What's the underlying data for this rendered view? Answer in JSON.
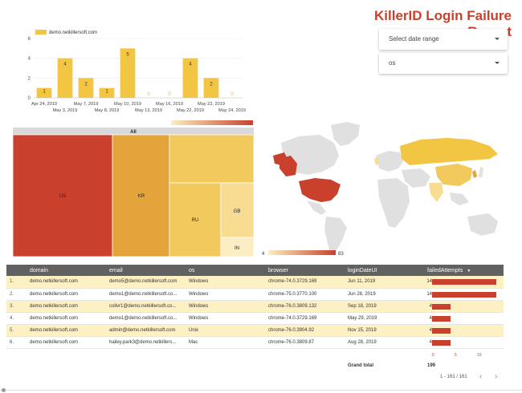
{
  "report": {
    "title": "KillerID Login Failure Report"
  },
  "filters": {
    "date_range": {
      "label": "Select date range"
    },
    "os": {
      "label": "os"
    }
  },
  "bar_chart": {
    "type": "bar",
    "legend": "demo.netkillersoft.com",
    "color": "#f2c542",
    "categories": [
      "Apr 24, 2019",
      "May 3, 2019",
      "May 7, 2019",
      "May 8, 2019",
      "May 10, 2019",
      "May 13, 2019",
      "May 16, 2019",
      "May 22, 2019",
      "May 23, 2019",
      "May 24, 2019"
    ],
    "values": [
      1,
      4,
      2,
      1,
      5,
      0,
      0,
      4,
      2,
      0
    ],
    "yticks": [
      0,
      2,
      4,
      6
    ],
    "ylim": [
      0,
      6
    ]
  },
  "treemap": {
    "header": "All",
    "legend_colors": {
      "low": "#fbeec2",
      "high": "#c9412c"
    },
    "items": [
      {
        "label": "US",
        "color": "#c9412c"
      },
      {
        "label": "KR",
        "color": "#e3a53b"
      },
      {
        "label": "",
        "color": "#f2c95c"
      },
      {
        "label": "RU",
        "color": "#f2c95c"
      },
      {
        "label": "GB",
        "color": "#f7dc92"
      },
      {
        "label": "IN",
        "color": "#fbeec2"
      }
    ]
  },
  "geo_map": {
    "legend_min": "4",
    "legend_max": "83",
    "colors": {
      "base": "#e0e0e0",
      "us": "#c9412c",
      "greenland": "#c9412c",
      "russia": "#f2c542",
      "china": "#f2c95c",
      "light": "#f7dc92"
    }
  },
  "table": {
    "columns": [
      "domain",
      "email",
      "os",
      "browser",
      "loginDateUI",
      "failedAttempts"
    ],
    "sort_indicator": "▼",
    "rows": [
      {
        "idx": "1.",
        "domain": "demo.netkillersoft.com",
        "email": "demo5@demo.netkillersoft.com",
        "os": "Windows",
        "browser": "chrome-74.0.3729.169",
        "date": "Jun 11, 2019",
        "attempts": 14
      },
      {
        "idx": "2.",
        "domain": "demo.netkillersoft.com",
        "email": "demo1@demo.netkillersoft.co...",
        "os": "Windows",
        "browser": "chrome-75.0.3770.100",
        "date": "Jun 28, 2019",
        "attempts": 14
      },
      {
        "idx": "3.",
        "domain": "demo.netkillersoft.com",
        "email": "collvr1@demo.netkillersoft.co...",
        "os": "Windows",
        "browser": "chrome-76.0.3809.132",
        "date": "Sep 18, 2019",
        "attempts": 4
      },
      {
        "idx": "4.",
        "domain": "demo.netkillersoft.com",
        "email": "demo1@demo.netkillersoft.co...",
        "os": "Windows",
        "browser": "chrome-74.0.3729.169",
        "date": "May 29, 2019",
        "attempts": 4
      },
      {
        "idx": "5.",
        "domain": "demo.netkillersoft.com",
        "email": "admin@demo.netkillersoft.com",
        "os": "Unix",
        "browser": "chrome-76.0.3904.92",
        "date": "Nov 15, 2019",
        "attempts": 4
      },
      {
        "idx": "6.",
        "domain": "demo.netkillersoft.com",
        "email": "hailey.park3@demo.netkillers...",
        "os": "Mac",
        "browser": "chrome-76.0.3809.87",
        "date": "Aug 28, 2019",
        "attempts": 4
      }
    ],
    "bar_max": 15,
    "bar_axis": [
      "0",
      "5",
      "10"
    ],
    "grand_total_label": "Grand total",
    "grand_total_value": "199",
    "pagination": "1 - 161 / 161",
    "prev_icon": "chevron-left-icon",
    "next_icon": "chevron-right-icon"
  },
  "chart_data": {
    "type": "bar",
    "categories": [
      "Apr 24, 2019",
      "May 3, 2019",
      "May 7, 2019",
      "May 8, 2019",
      "May 10, 2019",
      "May 13, 2019",
      "May 16, 2019",
      "May 22, 2019",
      "May 23, 2019",
      "May 24, 2019"
    ],
    "series": [
      {
        "name": "demo.netkillersoft.com",
        "values": [
          1,
          4,
          2,
          1,
          5,
          0,
          0,
          4,
          2,
          0
        ]
      }
    ],
    "ylim": [
      0,
      6
    ],
    "legend": "top-left",
    "grid": true
  }
}
